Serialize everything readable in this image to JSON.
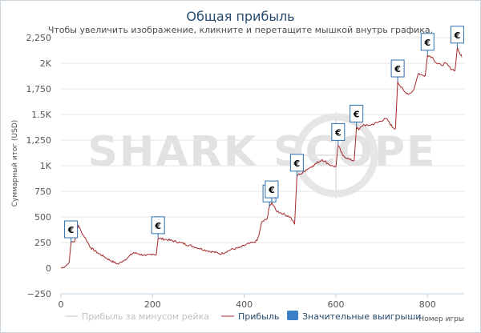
{
  "chart_data": {
    "type": "line",
    "title": "Общая прибыль",
    "subtitle": "Чтобы увеличить изображение, кликните и перетащите мышкой внутрь графика.",
    "ylabel": "Суммарный итог (USD)",
    "xlabel": "Номер игры",
    "xlim": [
      0,
      880
    ],
    "ylim": [
      -250,
      2250
    ],
    "x_ticks": [
      "0",
      "200",
      "400",
      "600",
      "800"
    ],
    "y_ticks": [
      "−250",
      "0",
      "250",
      "500",
      "750",
      "1K",
      "1,250",
      "1.5K",
      "1,750",
      "2K",
      "2,250"
    ],
    "grid": "horizontal",
    "watermark": "SHARK SCOPE",
    "legend": {
      "placement": "bottom",
      "items": [
        {
          "label": "Прибыль за минусом рейка",
          "style": "line-muted"
        },
        {
          "label": "Прибыль",
          "style": "line"
        },
        {
          "label": "Значительные выигрыши",
          "style": "box"
        }
      ]
    },
    "series": [
      {
        "name": "Прибыль",
        "color": "#a52a2a",
        "x": [
          0,
          10,
          18,
          22,
          30,
          38,
          45,
          55,
          65,
          80,
          95,
          110,
          125,
          135,
          145,
          158,
          170,
          185,
          200,
          208,
          212,
          230,
          260,
          290,
          320,
          350,
          370,
          390,
          410,
          420,
          428,
          432,
          438,
          450,
          455,
          460,
          470,
          485,
          500,
          510,
          515,
          520,
          525,
          535,
          550,
          570,
          590,
          600,
          605,
          615,
          630,
          640,
          645,
          650,
          660,
          670,
          690,
          710,
          725,
          730,
          735,
          740,
          750,
          760,
          770,
          780,
          790,
          795,
          800,
          810,
          820,
          830,
          840,
          850,
          855,
          860,
          865,
          870,
          875
        ],
        "y": [
          0,
          20,
          60,
          250,
          260,
          420,
          350,
          280,
          200,
          150,
          110,
          70,
          40,
          70,
          100,
          150,
          140,
          120,
          140,
          130,
          290,
          280,
          250,
          210,
          170,
          140,
          180,
          200,
          240,
          250,
          270,
          320,
          450,
          480,
          600,
          640,
          560,
          530,
          500,
          430,
          900,
          920,
          920,
          960,
          1000,
          1060,
          1000,
          990,
          1200,
          1100,
          1060,
          1050,
          1380,
          1350,
          1400,
          1390,
          1420,
          1460,
          1370,
          1360,
          1820,
          1780,
          1720,
          1700,
          1740,
          1900,
          1880,
          1880,
          2080,
          2060,
          2000,
          1980,
          2000,
          1950,
          1940,
          1930,
          2150,
          2100,
          2060
        ]
      }
    ],
    "big_wins": {
      "label": "€",
      "x": [
        22,
        212,
        455,
        460,
        515,
        605,
        645,
        735,
        800,
        865
      ],
      "y": [
        250,
        290,
        600,
        640,
        900,
        1200,
        1380,
        1820,
        2080,
        2150
      ]
    }
  }
}
